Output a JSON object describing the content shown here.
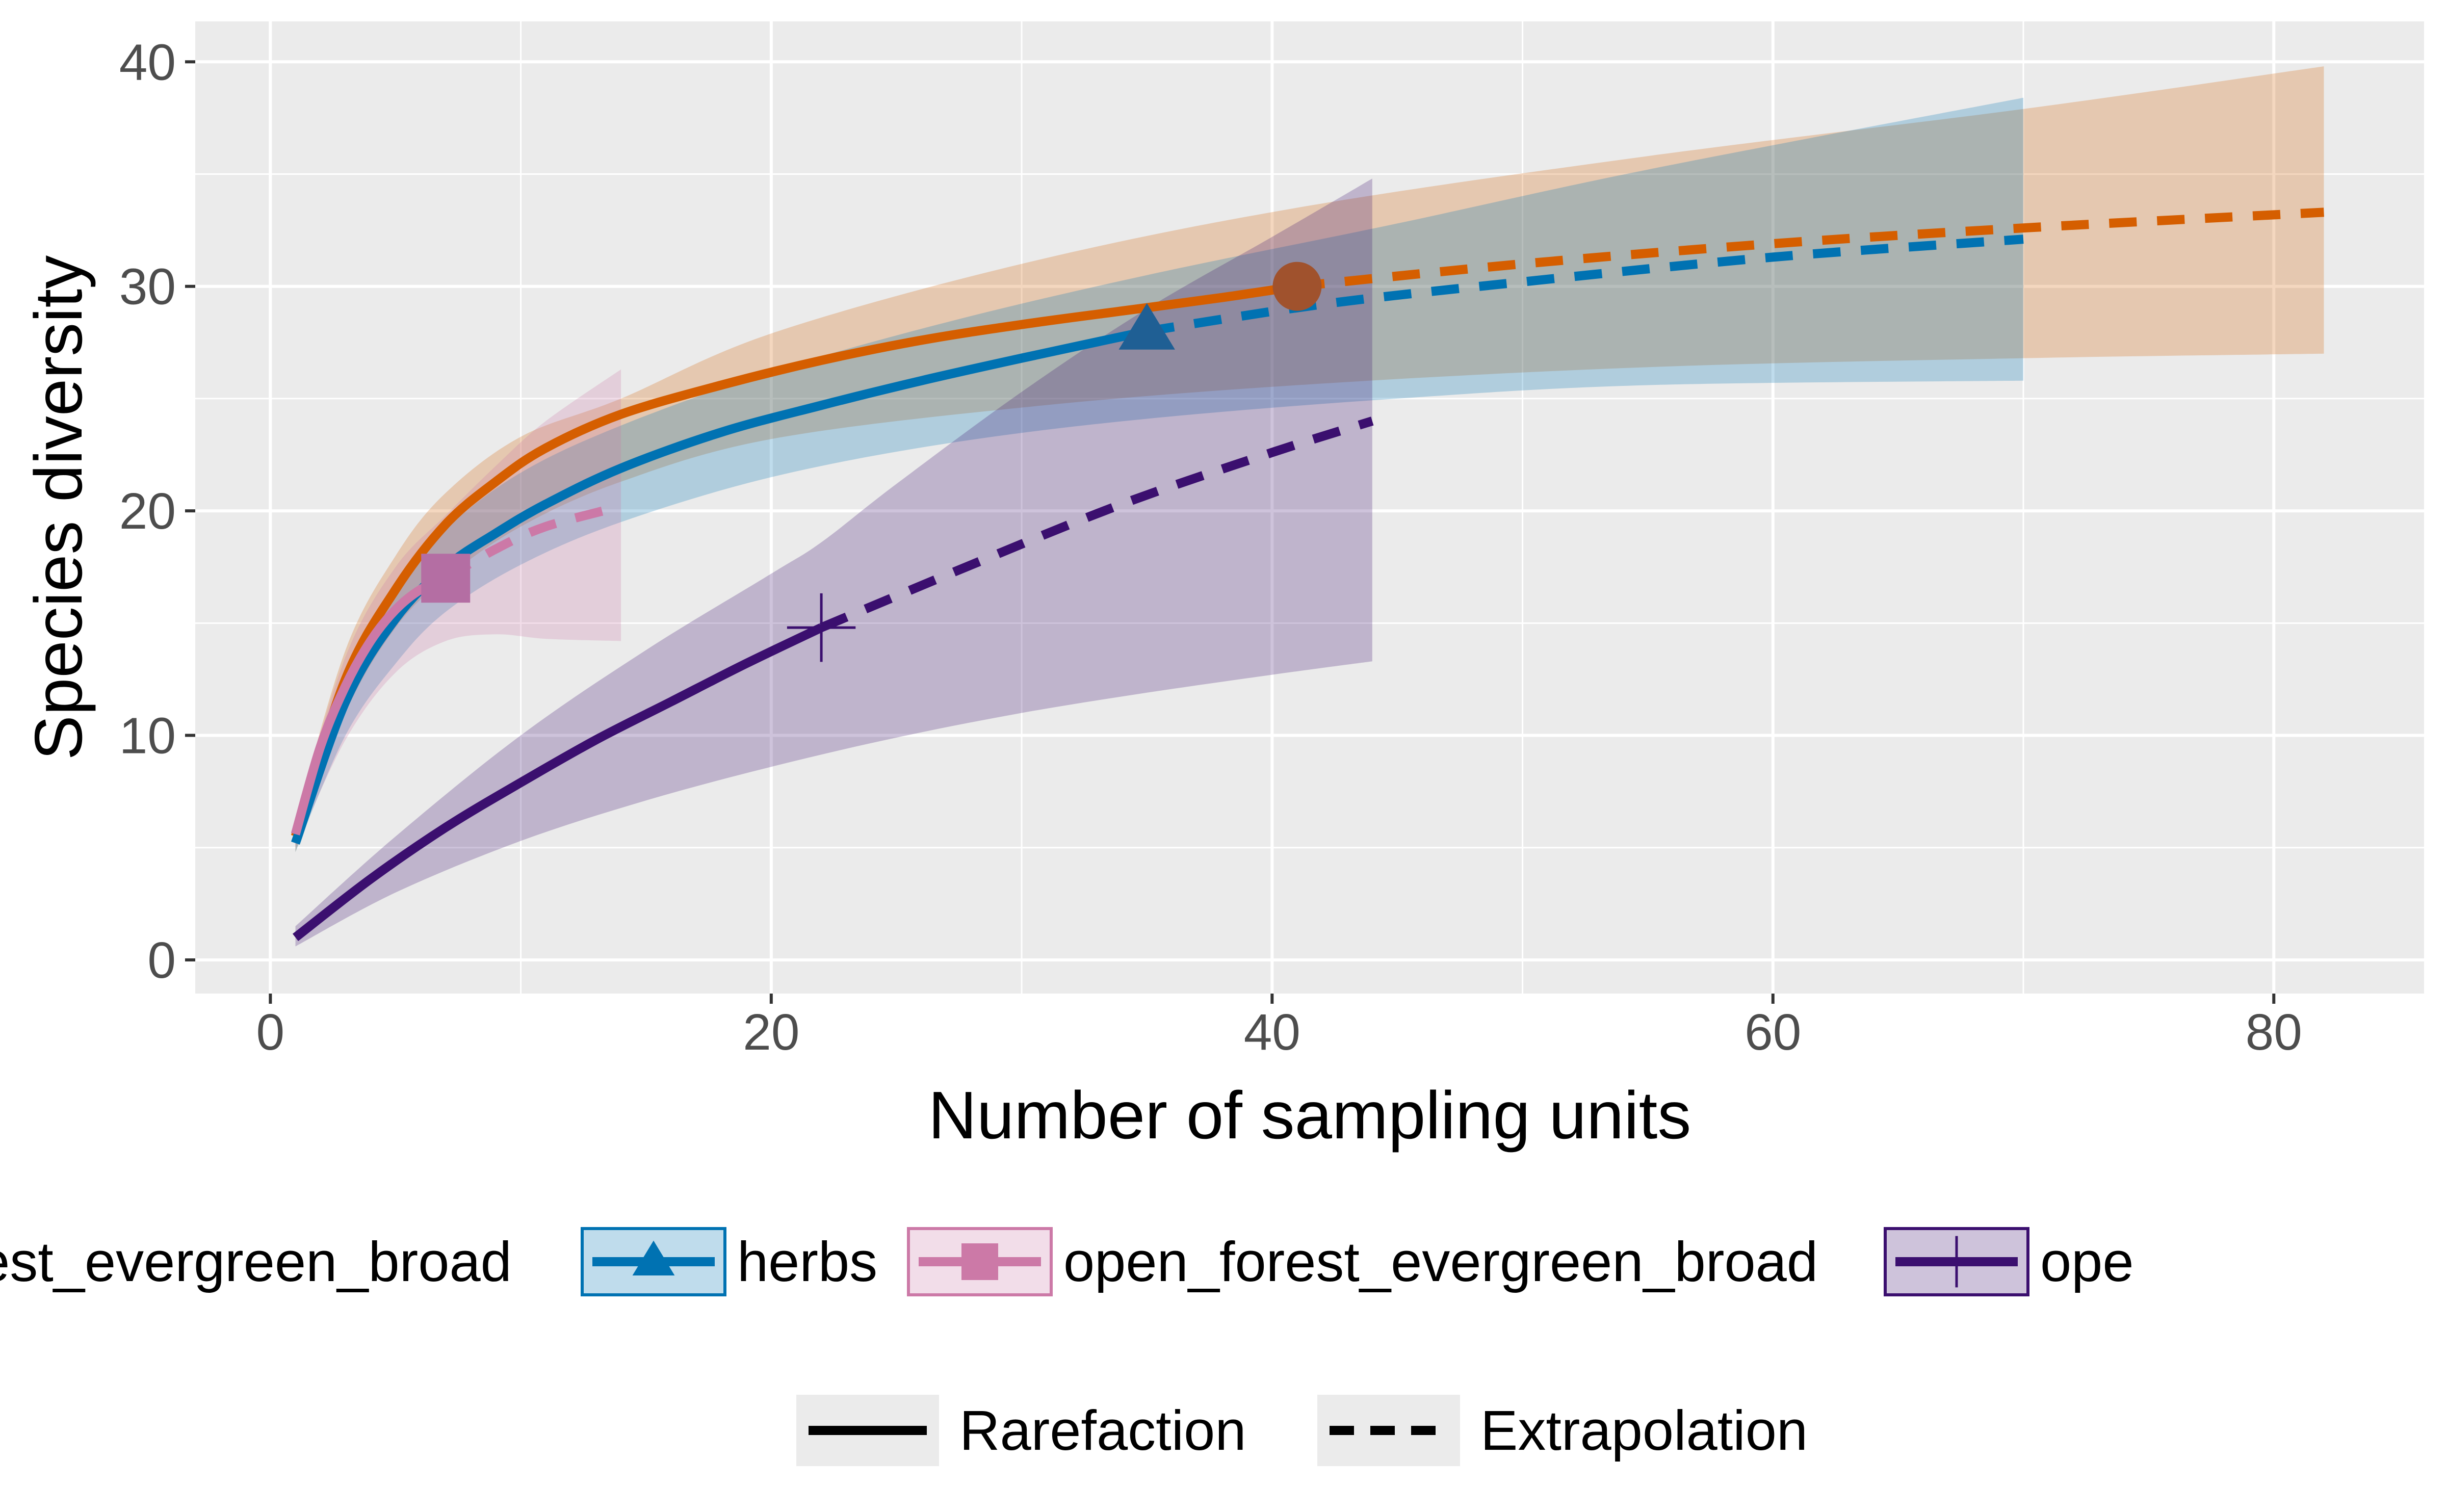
{
  "chart_data": {
    "type": "line",
    "xlabel": "Number of sampling units",
    "ylabel": "Species diversity",
    "xlim": [
      -3,
      86
    ],
    "ylim": [
      -1.5,
      41.8
    ],
    "x_ticks": [
      0,
      20,
      40,
      60,
      80
    ],
    "y_ticks": [
      0,
      10,
      20,
      30,
      40
    ],
    "grid": true,
    "background": "#EBEBEB",
    "legend_position": "bottom",
    "series": [
      {
        "name": "closed_forest_evergreen_broad",
        "legend_label": "osed_forest_evergreen_broad",
        "color": "#D55E00",
        "marker": "circle",
        "observed": {
          "x": 41,
          "y": 30
        },
        "rarefaction": {
          "x": [
            1,
            3,
            5,
            7,
            9,
            11,
            14,
            18,
            22,
            26,
            30,
            34,
            38,
            41
          ],
          "y": [
            5.5,
            12.5,
            16.5,
            19.4,
            21.3,
            22.8,
            24.3,
            25.6,
            26.7,
            27.6,
            28.3,
            28.9,
            29.5,
            30.0
          ]
        },
        "extrapolation": {
          "x": [
            41,
            50,
            60,
            70,
            82
          ],
          "y": [
            30.0,
            31.0,
            31.9,
            32.6,
            33.3
          ]
        },
        "ci_lower": {
          "x": [
            1,
            3,
            5,
            7,
            10,
            14,
            20,
            30,
            41,
            55,
            70,
            82
          ],
          "y": [
            4.8,
            11.0,
            14.8,
            17.0,
            19.3,
            21.3,
            23.2,
            24.6,
            25.6,
            26.4,
            26.8,
            27.0
          ]
        },
        "ci_upper": {
          "x": [
            1,
            3,
            5,
            7,
            10,
            14,
            20,
            30,
            41,
            55,
            70,
            82
          ],
          "y": [
            6.2,
            13.8,
            18.0,
            20.8,
            23.3,
            25.0,
            27.9,
            31.0,
            33.5,
            35.8,
            37.9,
            39.8
          ]
        }
      },
      {
        "name": "herbs",
        "legend_label": "herbs",
        "color": "#0072B2",
        "marker": "triangle",
        "observed": {
          "x": 35,
          "y": 28
        },
        "rarefaction": {
          "x": [
            1,
            3,
            5,
            7,
            9,
            11,
            14,
            18,
            22,
            26,
            30,
            35
          ],
          "y": [
            5.2,
            11.5,
            15.2,
            17.5,
            19.0,
            20.3,
            21.9,
            23.5,
            24.7,
            25.8,
            26.8,
            28.0
          ]
        },
        "extrapolation": {
          "x": [
            35,
            42,
            50,
            60,
            70
          ],
          "y": [
            28.0,
            29.2,
            30.2,
            31.3,
            32.1
          ]
        },
        "ci_lower": {
          "x": [
            1,
            3,
            5,
            7,
            10,
            14,
            20,
            27,
            35,
            45,
            55,
            70
          ],
          "y": [
            4.8,
            10.0,
            13.2,
            15.5,
            17.6,
            19.5,
            21.5,
            23.0,
            24.1,
            25.0,
            25.6,
            25.8
          ]
        },
        "ci_upper": {
          "x": [
            1,
            3,
            5,
            7,
            10,
            14,
            20,
            27,
            35,
            45,
            55,
            70
          ],
          "y": [
            5.8,
            12.7,
            16.6,
            19.2,
            21.7,
            23.8,
            26.2,
            28.4,
            30.5,
            32.8,
            35.2,
            38.4
          ]
        }
      },
      {
        "name": "open_forest_evergreen_broad",
        "legend_label": "open_forest_evergreen_broad",
        "color": "#CC79A7",
        "marker": "square",
        "observed": {
          "x": 7,
          "y": 17
        },
        "rarefaction": {
          "x": [
            1,
            2,
            3,
            4,
            5,
            6,
            7
          ],
          "y": [
            5.6,
            9.5,
            12.2,
            14.2,
            15.6,
            16.5,
            17.0
          ]
        },
        "extrapolation": {
          "x": [
            7,
            9,
            11,
            14
          ],
          "y": [
            17.0,
            18.3,
            19.3,
            20.2
          ]
        },
        "ci_lower": {
          "x": [
            1,
            3,
            5,
            7,
            9,
            11,
            14
          ],
          "y": [
            5.0,
            9.8,
            12.8,
            14.2,
            14.5,
            14.3,
            14.2
          ]
        },
        "ci_upper": {
          "x": [
            1,
            3,
            5,
            7,
            9,
            11,
            14
          ],
          "y": [
            6.2,
            13.5,
            17.5,
            19.8,
            22.0,
            24.0,
            26.3
          ]
        }
      },
      {
        "name": "open_forest_evergreen_needle",
        "legend_label": "ope",
        "color": "#3B0F6F",
        "marker": "cross",
        "observed": {
          "x": 22,
          "y": 14.8
        },
        "rarefaction": {
          "x": [
            1,
            4,
            7,
            10,
            13,
            16,
            19,
            22
          ],
          "y": [
            1.0,
            3.6,
            5.9,
            7.9,
            9.8,
            11.5,
            13.2,
            14.8
          ]
        },
        "extrapolation": {
          "x": [
            22,
            28,
            34,
            40,
            44
          ],
          "y": [
            14.8,
            17.6,
            20.3,
            22.6,
            24.0
          ]
        },
        "ci_lower": {
          "x": [
            1,
            5,
            10,
            15,
            20,
            25,
            30,
            35,
            40,
            44
          ],
          "y": [
            0.6,
            3.0,
            5.3,
            7.1,
            8.6,
            9.9,
            11.0,
            11.9,
            12.7,
            13.3
          ]
        },
        "ci_upper": {
          "x": [
            1,
            5,
            10,
            15,
            20,
            22,
            25,
            30,
            35,
            40,
            44
          ],
          "y": [
            1.5,
            5.5,
            10.0,
            13.8,
            17.2,
            18.6,
            21.2,
            25.3,
            29.0,
            32.2,
            34.8
          ]
        }
      }
    ],
    "linetype_legend": [
      {
        "label": "Rarefaction",
        "style": "solid"
      },
      {
        "label": "Extrapolation",
        "style": "dashed"
      }
    ]
  }
}
